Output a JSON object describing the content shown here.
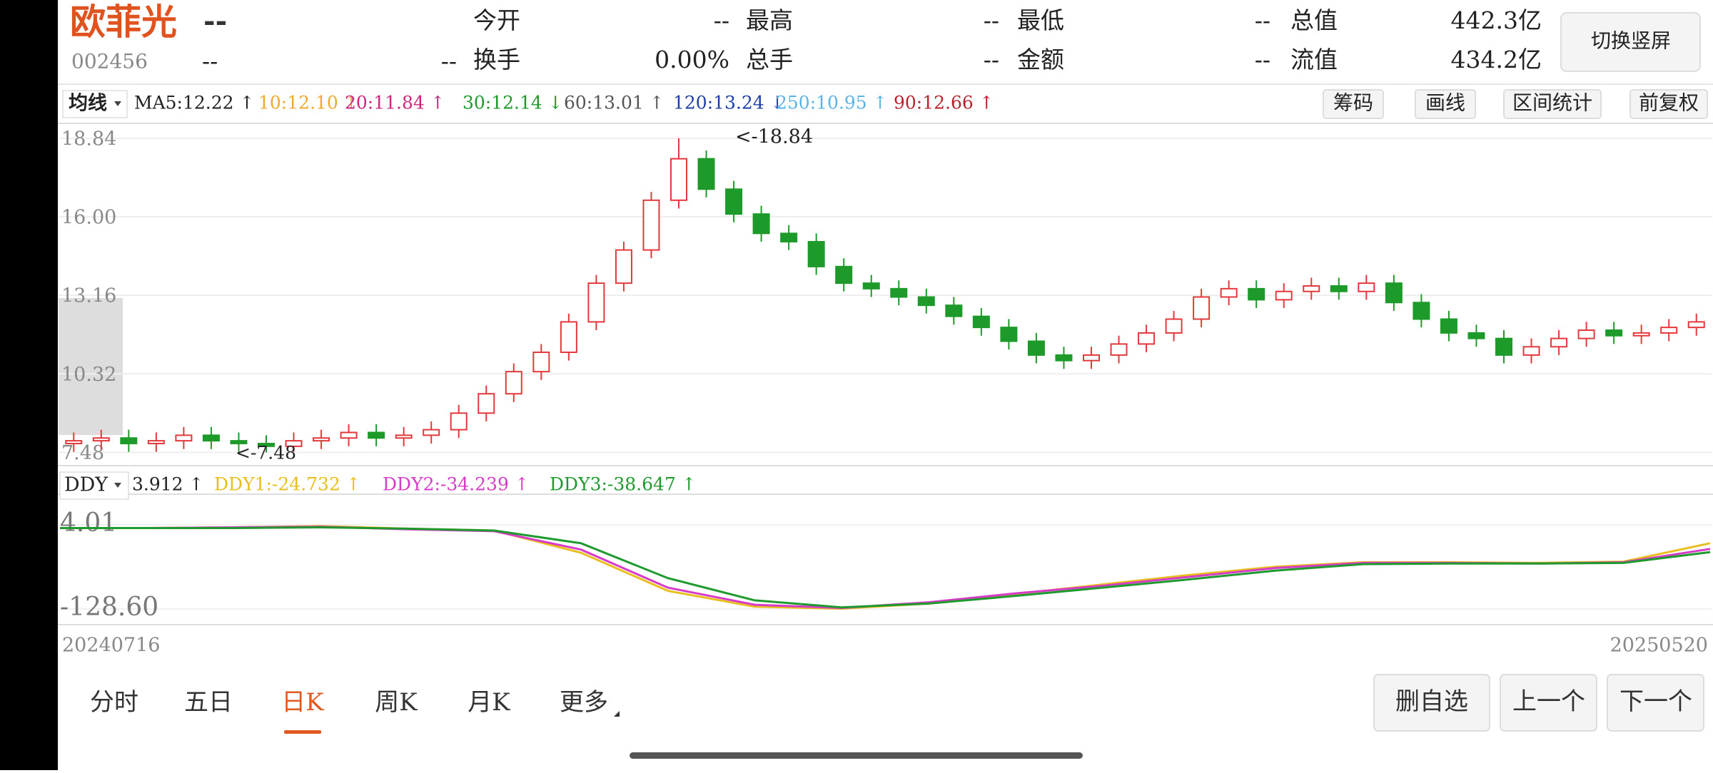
{
  "header": {
    "name": "欧菲光",
    "name_suffix": "--",
    "code": "002456",
    "code_field1": "--",
    "code_field2": "--",
    "quotes": [
      {
        "label": "今开",
        "value": "--"
      },
      {
        "label": "最高",
        "value": "--"
      },
      {
        "label": "最低",
        "value": "--"
      },
      {
        "label": "总值",
        "value": "442.3亿"
      },
      {
        "label": "换手",
        "value": "0.00%"
      },
      {
        "label": "总手",
        "value": "--"
      },
      {
        "label": "金额",
        "value": "--"
      },
      {
        "label": "流值",
        "value": "434.2亿"
      }
    ],
    "switch_button": "切换竖屏"
  },
  "ma_bar": {
    "selector": "均线",
    "items": [
      "MA5:12.22 ↑",
      "10:12.10 ↑",
      "20:11.84 ↑",
      "30:12.14 ↓",
      "60:13.01 ↑",
      "120:13.24 ↓",
      "250:10.95 ↑",
      "90:12.66 ↑"
    ],
    "buttons": [
      "筹码",
      "画线",
      "区间统计",
      "前复权"
    ]
  },
  "chart_data": [
    {
      "type": "candlestick",
      "ylim": [
        7.0,
        19.38
      ],
      "yticks": [
        18.84,
        {
          "value": 16,
          "label": "16.00"
        },
        13.16,
        10.32,
        7.48
      ],
      "max_label": "<-18.84",
      "min_label": "<-7.48",
      "up_color": "#e4393c",
      "down_color": "#1e9a2a",
      "open": [
        7.8,
        7.9,
        8.0,
        7.8,
        7.9,
        8.1,
        7.9,
        7.8,
        7.7,
        7.9,
        8.0,
        8.2,
        8.0,
        8.1,
        8.3,
        8.9,
        9.6,
        10.4,
        11.1,
        12.2,
        13.6,
        14.8,
        16.6,
        18.1,
        17.0,
        16.1,
        15.4,
        15.1,
        14.2,
        13.6,
        13.4,
        13.1,
        12.8,
        12.4,
        12.0,
        11.5,
        11.0,
        10.8,
        11.0,
        11.4,
        11.8,
        12.3,
        13.1,
        13.4,
        13.0,
        13.3,
        13.5,
        13.3,
        13.6,
        12.9,
        12.3,
        11.8,
        11.6,
        11.0,
        11.3,
        11.6,
        11.9,
        11.7,
        11.8,
        12.0
      ],
      "high": [
        8.2,
        8.3,
        8.3,
        8.2,
        8.4,
        8.4,
        8.2,
        8.1,
        8.2,
        8.3,
        8.5,
        8.5,
        8.4,
        8.6,
        9.2,
        9.9,
        10.7,
        11.4,
        12.5,
        13.9,
        15.1,
        16.9,
        18.84,
        18.4,
        17.3,
        16.4,
        15.7,
        15.4,
        14.5,
        13.9,
        13.7,
        13.4,
        13.1,
        12.7,
        12.3,
        11.8,
        11.3,
        11.3,
        11.7,
        12.1,
        12.6,
        13.4,
        13.7,
        13.7,
        13.6,
        13.8,
        13.8,
        13.9,
        13.9,
        13.2,
        12.6,
        12.1,
        11.9,
        11.6,
        11.9,
        12.2,
        12.2,
        12.1,
        12.3,
        12.5
      ],
      "low": [
        7.5,
        7.6,
        7.5,
        7.5,
        7.6,
        7.6,
        7.5,
        7.48,
        7.5,
        7.6,
        7.7,
        7.7,
        7.7,
        7.8,
        8.0,
        8.6,
        9.3,
        10.1,
        10.8,
        11.9,
        13.3,
        14.5,
        16.3,
        16.7,
        15.8,
        15.1,
        14.8,
        13.9,
        13.3,
        13.1,
        12.8,
        12.5,
        12.1,
        11.7,
        11.2,
        10.7,
        10.5,
        10.5,
        10.7,
        11.1,
        11.5,
        12.0,
        12.8,
        12.7,
        12.7,
        13.0,
        13.0,
        13.0,
        12.6,
        12.0,
        11.5,
        11.3,
        10.7,
        10.7,
        11.0,
        11.3,
        11.4,
        11.4,
        11.5,
        11.7
      ],
      "close": [
        7.9,
        8.0,
        7.8,
        7.9,
        8.1,
        7.9,
        7.8,
        7.7,
        7.9,
        8.0,
        8.2,
        8.0,
        8.1,
        8.3,
        8.9,
        9.6,
        10.4,
        11.1,
        12.2,
        13.6,
        14.8,
        16.6,
        18.1,
        17.0,
        16.1,
        15.4,
        15.1,
        14.2,
        13.6,
        13.4,
        13.1,
        12.8,
        12.4,
        12.0,
        11.5,
        11.0,
        10.8,
        11.0,
        11.4,
        11.8,
        12.3,
        13.1,
        13.4,
        13.0,
        13.3,
        13.5,
        13.3,
        13.6,
        12.9,
        12.3,
        11.8,
        11.6,
        11.0,
        11.3,
        11.6,
        11.9,
        11.7,
        11.8,
        12.0,
        12.2
      ],
      "x_start": "20240716",
      "x_end": "20250520"
    },
    {
      "type": "line",
      "selector": "DDY",
      "value_label": "3.912 ↑",
      "ylim": [
        -153.3,
        52.3
      ],
      "yticks": [
        4.01,
        {
          "value": -128.6,
          "label": "-128.60"
        }
      ],
      "series": [
        {
          "name": "DDY1:-24.732 ↑",
          "color": "#e8bf1e",
          "values": [
            -1,
            -1,
            0,
            2,
            -2,
            -5,
            -40,
            -100,
            -125,
            -128,
            -120,
            -105,
            -90,
            -75,
            -62,
            -55,
            -55,
            -56,
            -54,
            -25
          ]
        },
        {
          "name": "DDY2:-34.239 ↑",
          "color": "#d63cc7",
          "values": [
            -1,
            -1,
            0,
            1,
            -3,
            -6,
            -35,
            -95,
            -122,
            -127,
            -118,
            -104,
            -92,
            -78,
            -64,
            -56,
            -56,
            -57,
            -55,
            -34
          ]
        },
        {
          "name": "DDY3:-38.647 ↑",
          "color": "#1f9a2e",
          "values": [
            -1,
            -1,
            -1,
            0,
            -2,
            -5,
            -25,
            -80,
            -115,
            -126,
            -120,
            -108,
            -95,
            -82,
            -68,
            -58,
            -57,
            -57,
            -56,
            -39
          ]
        }
      ]
    }
  ],
  "tabs": [
    "分时",
    "五日",
    "日K",
    "周K",
    "月K",
    "更多"
  ],
  "actions": [
    "删自选",
    "上一个",
    "下一个"
  ]
}
